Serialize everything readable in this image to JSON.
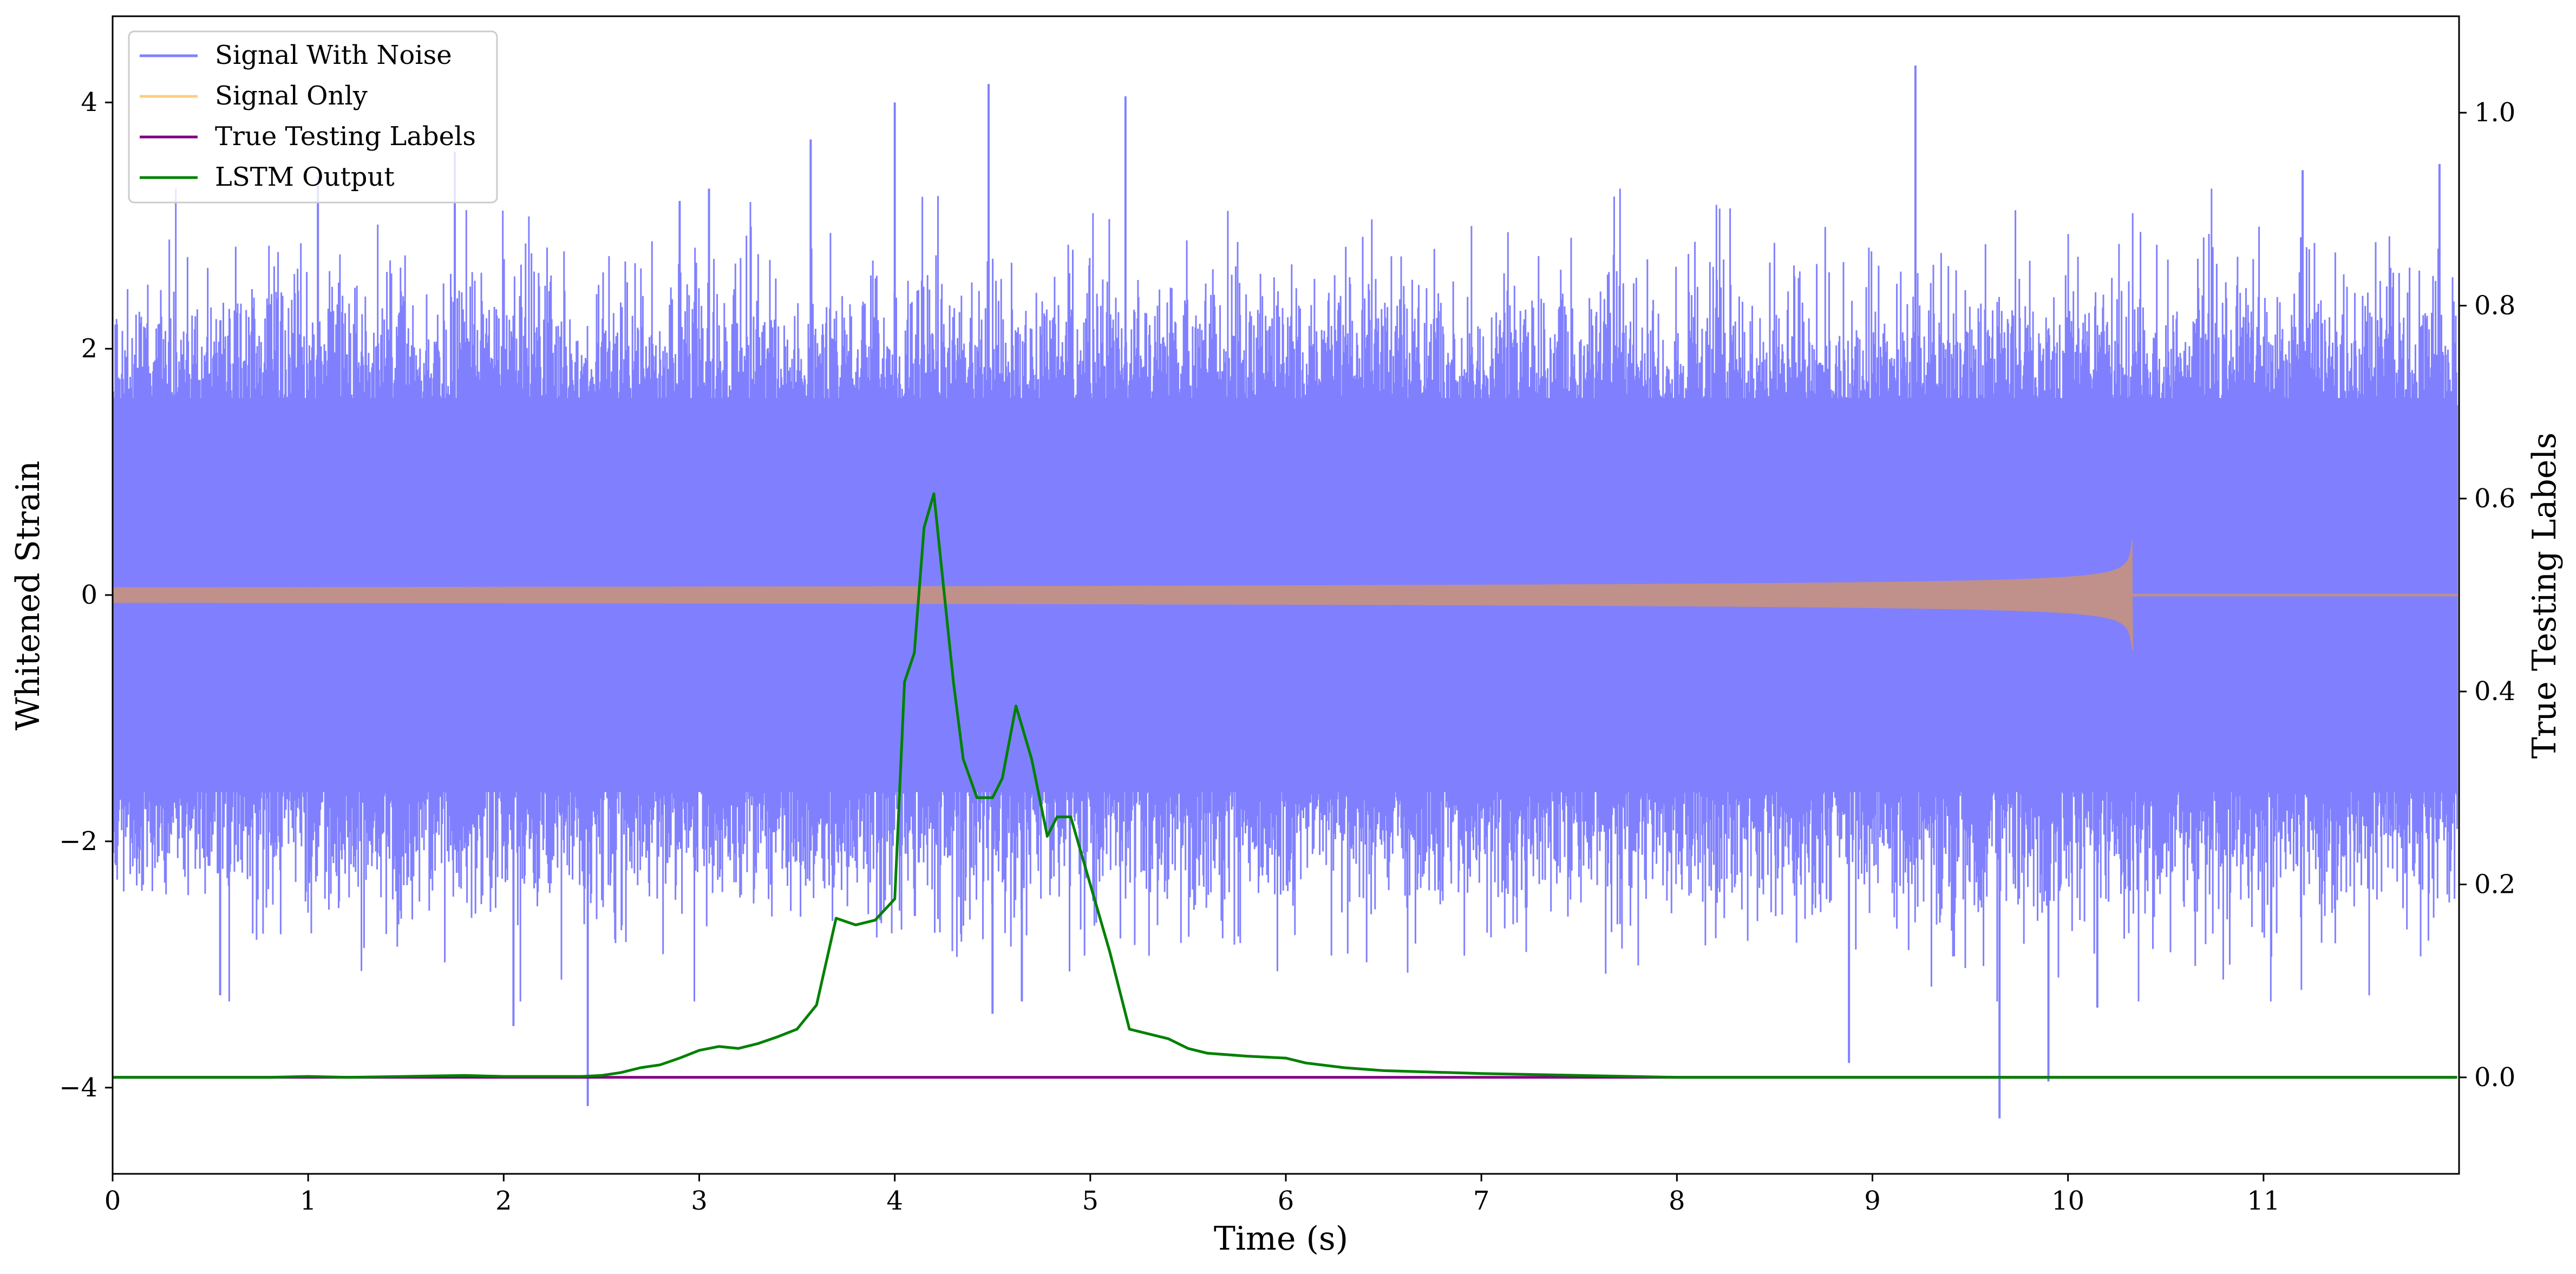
{
  "chart_data": {
    "type": "line",
    "title": "",
    "xlabel": "Time (s)",
    "ylabel": "Whitened Strain",
    "y2label": "True Testing Labels",
    "xlim": [
      0,
      12
    ],
    "ylim": [
      -4.7,
      4.7
    ],
    "y2lim": [
      -0.1,
      1.1
    ],
    "xticks": [
      0,
      1,
      2,
      3,
      4,
      5,
      6,
      7,
      8,
      9,
      10,
      11
    ],
    "xtick_labels": [
      "0",
      "1",
      "2",
      "3",
      "4",
      "5",
      "6",
      "7",
      "8",
      "9",
      "10",
      "11"
    ],
    "yticks": [
      -4,
      -2,
      0,
      2,
      4
    ],
    "ytick_labels": [
      "−4",
      "−2",
      "0",
      "2",
      "4"
    ],
    "y2ticks": [
      0.0,
      0.2,
      0.4,
      0.6,
      0.8,
      1.0
    ],
    "y2tick_labels": [
      "0.0",
      "0.2",
      "0.4",
      "0.6",
      "0.8",
      "1.0"
    ],
    "grid": false,
    "legend_position": "top-left",
    "colors": {
      "noise": "#8080ff",
      "signal": "#ffcc80",
      "labels": "#800080",
      "lstm": "#008000",
      "overlap": "#c0908a"
    },
    "series": [
      {
        "name": "Signal With Noise",
        "axis": "left",
        "kind": "noise",
        "x_range": [
          0,
          11.99
        ],
        "typical_band": [
          -1.6,
          1.6
        ],
        "spikes": [
          [
            0.55,
            -3.25
          ],
          [
            1.05,
            3.4
          ],
          [
            1.75,
            3.6
          ],
          [
            2.05,
            -3.5
          ],
          [
            2.43,
            -4.15
          ],
          [
            2.9,
            3.2
          ],
          [
            3.05,
            3.3
          ],
          [
            3.57,
            3.7
          ],
          [
            4.0,
            4.0
          ],
          [
            4.48,
            4.15
          ],
          [
            4.5,
            -3.4
          ],
          [
            4.65,
            -3.3
          ],
          [
            5.18,
            4.05
          ],
          [
            8.88,
            -3.8
          ],
          [
            9.22,
            4.3
          ],
          [
            9.65,
            -4.25
          ],
          [
            9.9,
            -3.95
          ],
          [
            10.15,
            -3.35
          ],
          [
            11.2,
            3.45
          ],
          [
            11.9,
            3.5
          ]
        ]
      },
      {
        "name": "Signal Only",
        "axis": "left",
        "kind": "chirp",
        "x_range": [
          0,
          11.99
        ],
        "merger_time": 10.33,
        "peak_amplitude": 0.45,
        "early_amplitude": 0.03
      },
      {
        "name": "True Testing Labels",
        "axis": "right",
        "x": [
          0,
          11.99
        ],
        "y": [
          0.0,
          0.0
        ]
      },
      {
        "name": "LSTM Output",
        "axis": "right",
        "x": [
          0,
          0.8,
          1.0,
          1.2,
          1.5,
          1.8,
          2.0,
          2.2,
          2.4,
          2.5,
          2.6,
          2.7,
          2.8,
          2.9,
          3.0,
          3.1,
          3.2,
          3.3,
          3.4,
          3.5,
          3.6,
          3.7,
          3.8,
          3.9,
          4.0,
          4.05,
          4.1,
          4.15,
          4.2,
          4.3,
          4.35,
          4.42,
          4.5,
          4.55,
          4.62,
          4.7,
          4.78,
          4.83,
          4.9,
          5.0,
          5.1,
          5.2,
          5.3,
          5.4,
          5.5,
          5.6,
          5.8,
          6.0,
          6.1,
          6.3,
          6.5,
          7.0,
          7.5,
          8.0,
          11.99
        ],
        "y": [
          0.0,
          0.0,
          0.001,
          0.0,
          0.001,
          0.002,
          0.001,
          0.001,
          0.001,
          0.002,
          0.005,
          0.01,
          0.013,
          0.02,
          0.028,
          0.032,
          0.03,
          0.035,
          0.042,
          0.05,
          0.075,
          0.165,
          0.158,
          0.163,
          0.185,
          0.41,
          0.44,
          0.57,
          0.605,
          0.41,
          0.33,
          0.29,
          0.29,
          0.31,
          0.385,
          0.33,
          0.25,
          0.27,
          0.27,
          0.2,
          0.13,
          0.05,
          0.045,
          0.04,
          0.03,
          0.025,
          0.022,
          0.02,
          0.015,
          0.01,
          0.007,
          0.004,
          0.002,
          0.0,
          0.0
        ]
      }
    ]
  }
}
